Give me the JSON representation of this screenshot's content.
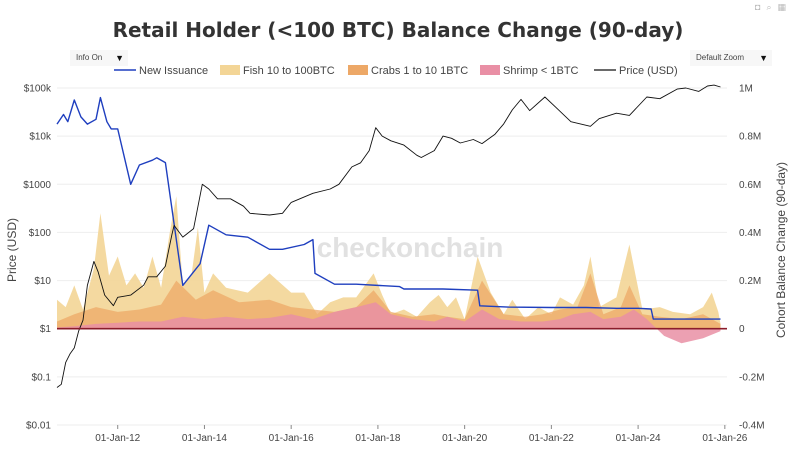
{
  "controls": {
    "info_toggle": "Info On",
    "zoom_select": "Default Zoom",
    "toolbar_icons": [
      "camera-icon",
      "search-icon",
      "grid-icon"
    ]
  },
  "watermark": "checkonchain",
  "colors": {
    "new_issuance": "#1f3fbf",
    "fish": "#f3d596",
    "crabs": "#eda867",
    "shrimp": "#e98fa5",
    "price": "#111111",
    "zero_line": "#8b1c2b"
  },
  "chart_data": {
    "type": "line",
    "title": "Retail Holder (<100 BTC) Balance Change (90-day)",
    "ylabel_left": "Price (USD)",
    "ylabel_right": "Cohort Balance Change (90-day)",
    "x_range": [
      2010.6,
      2026.05
    ],
    "y_left_scale": "log",
    "y_left_range": [
      0.01,
      100000
    ],
    "y_right_range": [
      -400000,
      1000000
    ],
    "x_ticks": [
      "01-Jan-12",
      "01-Jan-14",
      "01-Jan-16",
      "01-Jan-18",
      "01-Jan-20",
      "01-Jan-22",
      "01-Jan-24",
      "01-Jan-26"
    ],
    "x_tick_years": [
      2012,
      2014,
      2016,
      2018,
      2020,
      2022,
      2024,
      2026
    ],
    "y_left_ticks": [
      "$100k",
      "$10k",
      "$1000",
      "$100",
      "$10",
      "$1",
      "$0.1",
      "$0.01"
    ],
    "y_left_tick_values": [
      100000,
      10000,
      1000,
      100,
      10,
      1,
      0.1,
      0.01
    ],
    "y_right_ticks": [
      "1M",
      "0.8M",
      "0.6M",
      "0.4M",
      "0.2M",
      "0",
      "-0.2M",
      "-0.4M"
    ],
    "y_right_tick_values": [
      1000000,
      800000,
      600000,
      400000,
      200000,
      0,
      -200000,
      -400000
    ],
    "legend": [
      "New Issuance",
      "Fish 10 to 100BTC",
      "Crabs 1 to 10 1BTC",
      "Shrimp < 1BTC",
      "Price (USD)"
    ],
    "legend_position": "top",
    "series": [
      {
        "name": "New Issuance",
        "kind": "line",
        "axis": "right",
        "x": [
          2010.6,
          2010.75,
          2010.85,
          2011.0,
          2011.15,
          2011.3,
          2011.5,
          2011.6,
          2011.75,
          2011.85,
          2012.0,
          2012.3,
          2012.5,
          2012.8,
          2012.9,
          2013.1,
          2013.5,
          2013.9,
          2014.1,
          2014.5,
          2015.0,
          2015.5,
          2015.8,
          2016.3,
          2016.5,
          2016.55,
          2017.0,
          2017.5,
          2018.5,
          2018.6,
          2019.5,
          2020.3,
          2020.35,
          2021.0,
          2022.0,
          2022.8,
          2023.5,
          2024.0,
          2024.3,
          2024.35,
          2025.0,
          2025.9
        ],
        "values": [
          850000,
          890000,
          860000,
          950000,
          880000,
          850000,
          870000,
          960000,
          860000,
          830000,
          830000,
          600000,
          680000,
          700000,
          710000,
          690000,
          180000,
          270000,
          430000,
          390000,
          380000,
          330000,
          330000,
          350000,
          370000,
          230000,
          185000,
          185000,
          175000,
          165000,
          165000,
          160000,
          95000,
          90000,
          88000,
          88000,
          85000,
          85000,
          82000,
          40000,
          40000,
          40000
        ]
      },
      {
        "name": "Fish 10 to 100BTC",
        "kind": "area",
        "axis": "right",
        "x": [
          2010.6,
          2010.8,
          2011.0,
          2011.2,
          2011.45,
          2011.6,
          2011.8,
          2012.0,
          2012.2,
          2012.4,
          2012.6,
          2012.8,
          2013.0,
          2013.2,
          2013.35,
          2013.5,
          2013.7,
          2013.85,
          2014.0,
          2014.2,
          2014.5,
          2015.0,
          2015.5,
          2016.0,
          2016.3,
          2016.6,
          2016.9,
          2017.2,
          2017.5,
          2017.9,
          2018.1,
          2018.3,
          2018.6,
          2018.9,
          2019.2,
          2019.4,
          2019.6,
          2019.8,
          2020.0,
          2020.3,
          2020.6,
          2020.9,
          2021.1,
          2021.4,
          2021.7,
          2022.0,
          2022.2,
          2022.5,
          2022.75,
          2022.9,
          2023.1,
          2023.5,
          2023.8,
          2024.1,
          2024.5,
          2024.8,
          2025.2,
          2025.5,
          2025.7,
          2025.85,
          2025.9
        ],
        "values": [
          120000,
          90000,
          180000,
          80000,
          250000,
          480000,
          220000,
          300000,
          180000,
          230000,
          170000,
          300000,
          170000,
          400000,
          550000,
          180000,
          220000,
          420000,
          150000,
          230000,
          170000,
          150000,
          230000,
          150000,
          150000,
          60000,
          110000,
          130000,
          130000,
          230000,
          140000,
          60000,
          80000,
          50000,
          110000,
          140000,
          90000,
          130000,
          40000,
          300000,
          150000,
          60000,
          120000,
          40000,
          90000,
          60000,
          130000,
          100000,
          180000,
          300000,
          90000,
          130000,
          350000,
          80000,
          90000,
          70000,
          60000,
          90000,
          150000,
          70000,
          20000
        ]
      },
      {
        "name": "Crabs 1 to 10 1BTC",
        "kind": "area",
        "axis": "right",
        "x": [
          2010.6,
          2011.0,
          2011.5,
          2012.0,
          2012.5,
          2013.0,
          2013.35,
          2013.8,
          2014.2,
          2014.8,
          2015.5,
          2016.0,
          2016.5,
          2017.0,
          2017.5,
          2017.9,
          2018.3,
          2018.8,
          2019.3,
          2019.6,
          2020.0,
          2020.4,
          2020.9,
          2021.4,
          2021.8,
          2022.2,
          2022.6,
          2022.9,
          2023.2,
          2023.6,
          2023.8,
          2024.1,
          2024.5,
          2025.0,
          2025.5,
          2025.9
        ],
        "values": [
          30000,
          60000,
          90000,
          70000,
          80000,
          100000,
          200000,
          120000,
          160000,
          110000,
          120000,
          90000,
          80000,
          70000,
          90000,
          160000,
          70000,
          50000,
          60000,
          50000,
          40000,
          200000,
          60000,
          50000,
          60000,
          80000,
          90000,
          230000,
          60000,
          90000,
          180000,
          60000,
          50000,
          40000,
          60000,
          20000
        ]
      },
      {
        "name": "Shrimp < 1BTC",
        "kind": "area",
        "axis": "right",
        "x": [
          2010.6,
          2011.0,
          2011.5,
          2012.0,
          2012.5,
          2013.0,
          2013.5,
          2014.0,
          2014.5,
          2015.0,
          2015.5,
          2016.0,
          2016.5,
          2017.0,
          2017.5,
          2017.95,
          2018.3,
          2018.8,
          2019.3,
          2019.6,
          2020.0,
          2020.4,
          2020.8,
          2021.3,
          2021.8,
          2022.2,
          2022.5,
          2022.9,
          2023.2,
          2023.6,
          2023.9,
          2024.2,
          2024.6,
          2025.0,
          2025.5,
          2025.9
        ],
        "values": [
          5000,
          10000,
          20000,
          25000,
          30000,
          30000,
          50000,
          40000,
          50000,
          40000,
          45000,
          60000,
          40000,
          70000,
          90000,
          110000,
          60000,
          40000,
          30000,
          50000,
          30000,
          80000,
          40000,
          30000,
          30000,
          40000,
          60000,
          70000,
          40000,
          50000,
          80000,
          40000,
          -30000,
          -60000,
          -40000,
          -10000
        ]
      },
      {
        "name": "Price (USD)",
        "kind": "line",
        "axis": "left",
        "x": [
          2010.6,
          2010.7,
          2010.8,
          2010.9,
          2011.0,
          2011.1,
          2011.2,
          2011.3,
          2011.45,
          2011.55,
          2011.7,
          2011.9,
          2012.0,
          2012.3,
          2012.6,
          2012.7,
          2012.9,
          2013.1,
          2013.25,
          2013.3,
          2013.5,
          2013.75,
          2013.95,
          2014.1,
          2014.3,
          2014.6,
          2014.9,
          2015.05,
          2015.5,
          2015.8,
          2016.0,
          2016.5,
          2016.9,
          2017.1,
          2017.4,
          2017.6,
          2017.8,
          2017.95,
          2018.1,
          2018.3,
          2018.6,
          2018.9,
          2019.0,
          2019.3,
          2019.5,
          2019.7,
          2019.9,
          2020.2,
          2020.4,
          2020.7,
          2020.9,
          2021.1,
          2021.3,
          2021.5,
          2021.85,
          2022.1,
          2022.45,
          2022.9,
          2023.1,
          2023.5,
          2023.8,
          2024.2,
          2024.5,
          2024.9,
          2025.1,
          2025.4,
          2025.6,
          2025.75,
          2025.9
        ],
        "values": [
          0.06,
          0.07,
          0.2,
          0.3,
          0.4,
          0.9,
          1.5,
          8,
          25,
          15,
          5,
          3,
          4.5,
          5,
          8,
          12,
          12,
          20,
          90,
          140,
          80,
          120,
          1000,
          800,
          500,
          500,
          350,
          250,
          230,
          250,
          420,
          650,
          800,
          1000,
          2300,
          2800,
          5000,
          15000,
          10000,
          8000,
          6500,
          4000,
          3600,
          5000,
          10000,
          9000,
          7200,
          8500,
          7000,
          11000,
          18000,
          35000,
          58000,
          34000,
          65000,
          40000,
          20000,
          16000,
          23000,
          30000,
          27000,
          65000,
          60000,
          95000,
          100000,
          85000,
          110000,
          115000,
          105000
        ]
      }
    ]
  }
}
